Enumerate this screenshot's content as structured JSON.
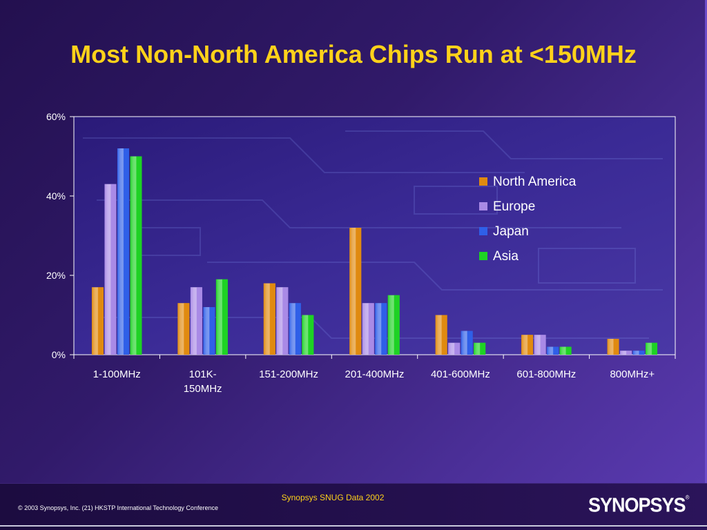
{
  "slide": {
    "title": "Most Non-North America Chips Run at <150MHz"
  },
  "chart_data": {
    "type": "bar",
    "title": "",
    "xlabel": "",
    "ylabel": "",
    "categories": [
      "1-100MHz",
      "101K-150MHz",
      "151-200MHz",
      "201-400MHz",
      "401-600MHz",
      "601-800MHz",
      "800MHz+"
    ],
    "category_lines": [
      [
        "1-100MHz"
      ],
      [
        "101K-",
        "150MHz"
      ],
      [
        "151-200MHz"
      ],
      [
        "201-400MHz"
      ],
      [
        "401-600MHz"
      ],
      [
        "601-800MHz"
      ],
      [
        "800MHz+"
      ]
    ],
    "yticks": [
      "0%",
      "20%",
      "40%",
      "60%"
    ],
    "ytick_values": [
      0,
      20,
      40,
      60
    ],
    "ylim": [
      0,
      60
    ],
    "grid": false,
    "legend_position": "top-right",
    "series": [
      {
        "name": "North America",
        "color": "#e08a10",
        "values": [
          17,
          13,
          18,
          32,
          10,
          5,
          4
        ]
      },
      {
        "name": "Europe",
        "color": "#a98ae6",
        "values": [
          43,
          17,
          17,
          13,
          3,
          5,
          1
        ]
      },
      {
        "name": "Japan",
        "color": "#2f5fe8",
        "values": [
          52,
          12,
          13,
          13,
          6,
          2,
          1
        ]
      },
      {
        "name": "Asia",
        "color": "#1ed224",
        "values": [
          50,
          19,
          10,
          15,
          3,
          2,
          3
        ]
      }
    ]
  },
  "footer": {
    "center_text": "Synopsys SNUG Data 2002",
    "left_text": "© 2003 Synopsys, Inc. (21) HKSTP International Technology Conference",
    "logo_text": "SYNOPSYS",
    "logo_mark": "®"
  }
}
